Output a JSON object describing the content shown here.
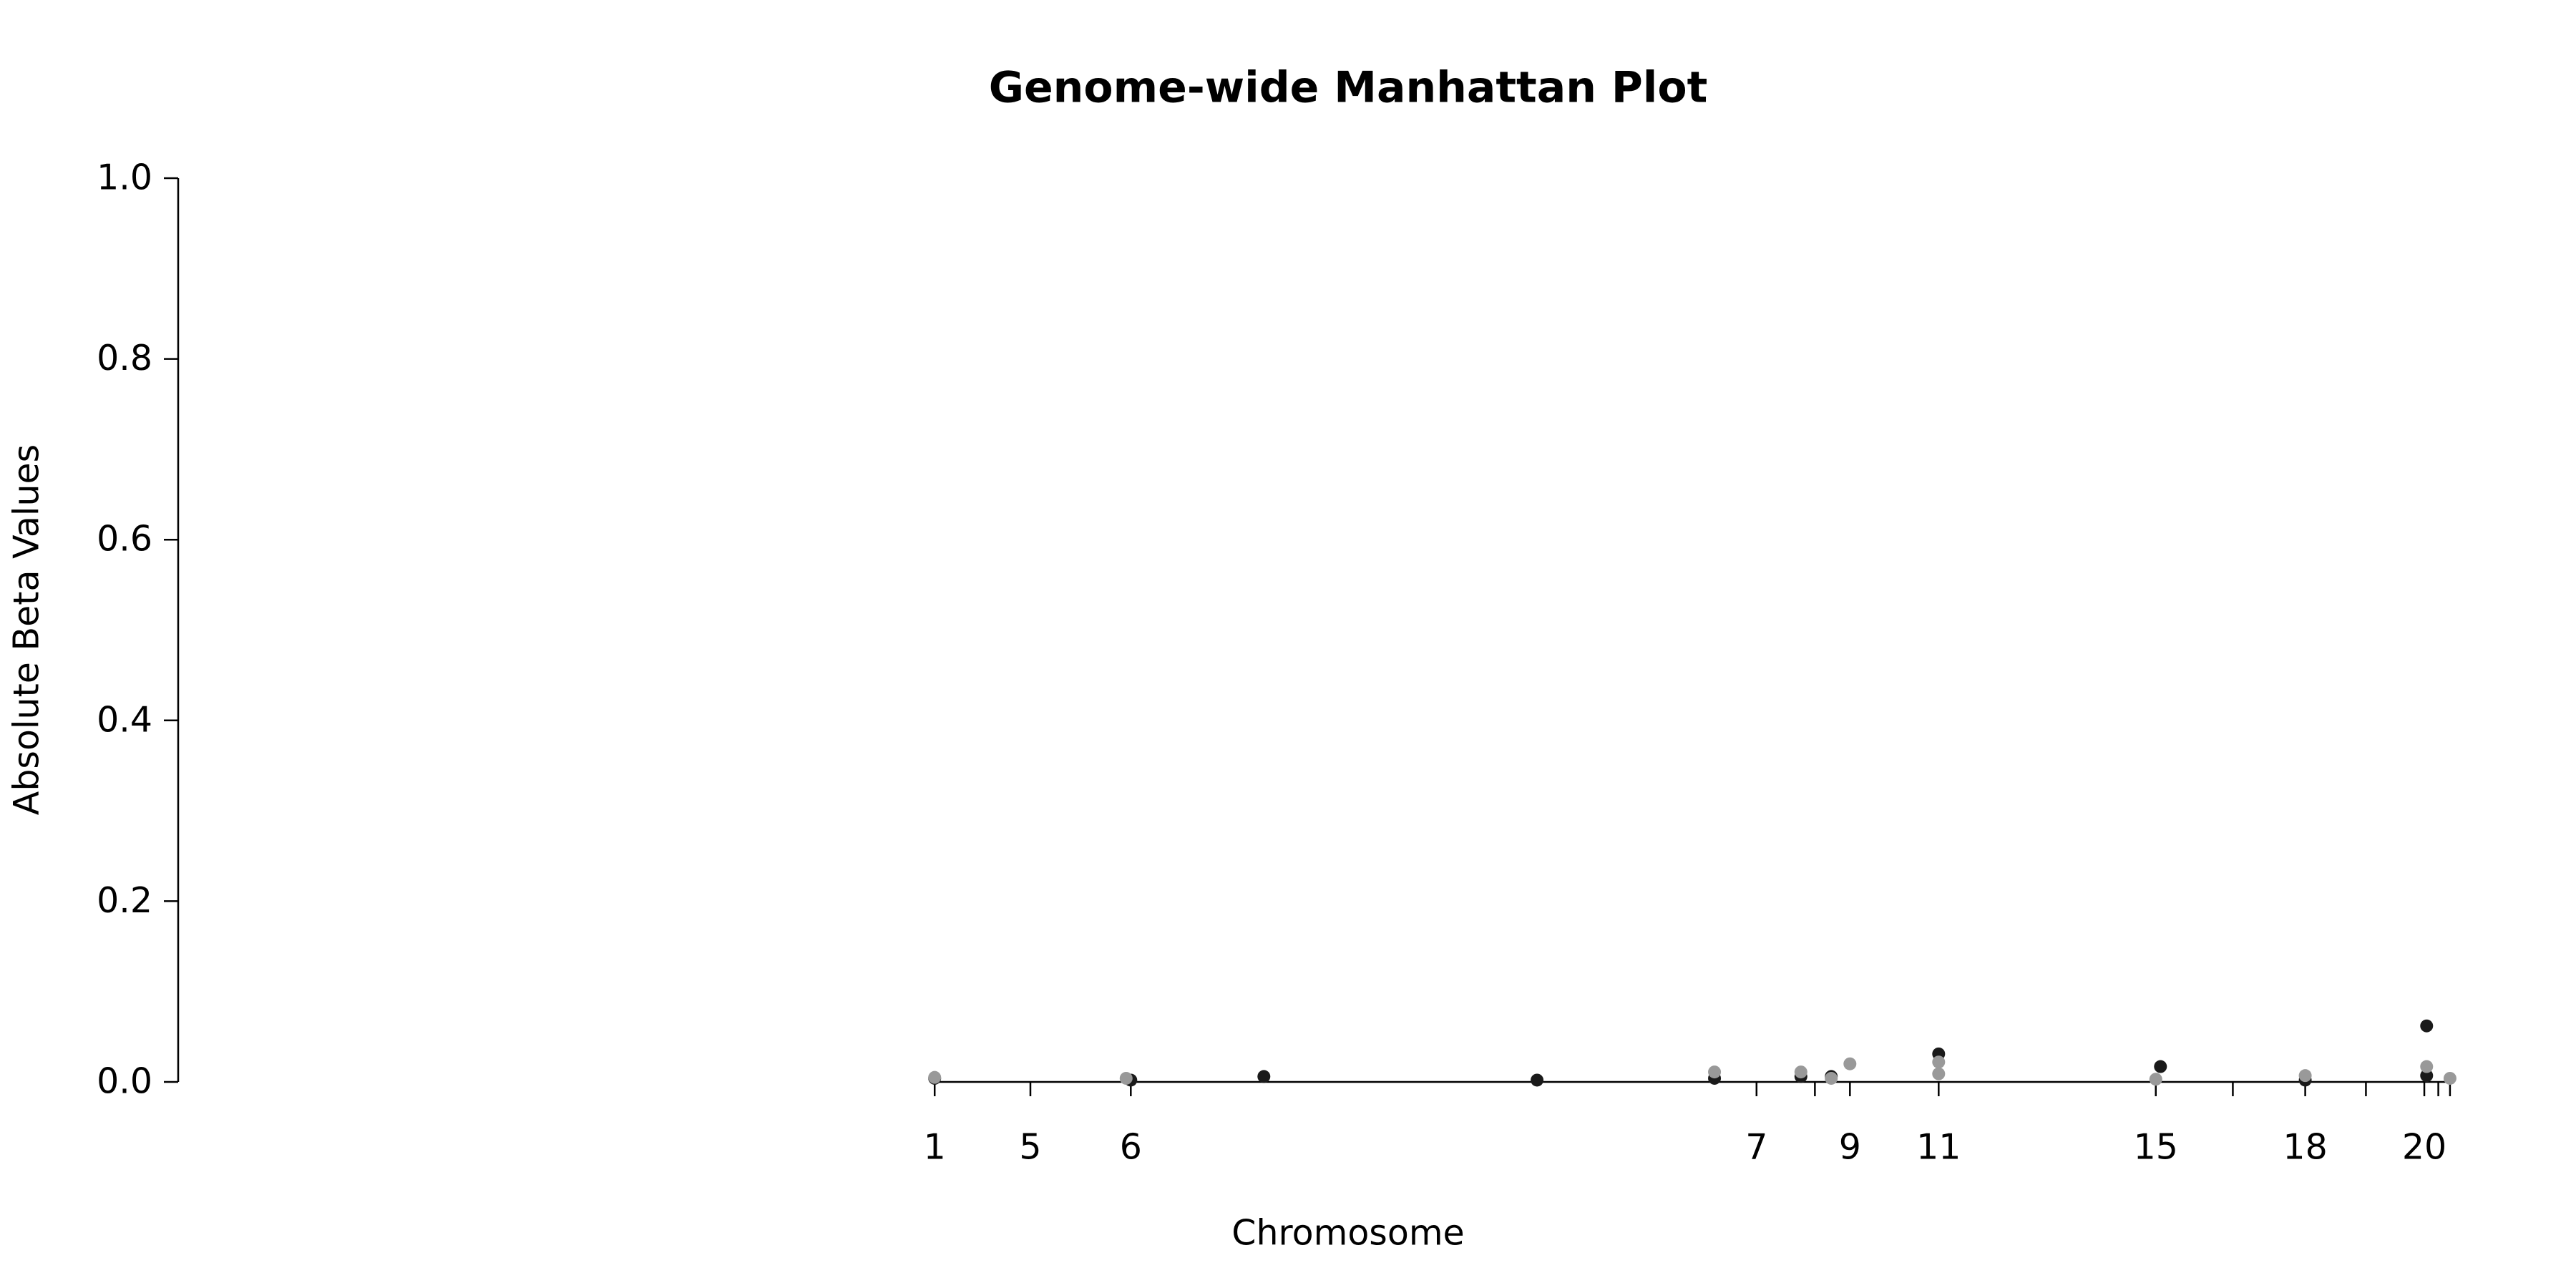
{
  "chart_data": {
    "type": "scatter",
    "title": "Genome-wide Manhattan Plot",
    "x_label": "Chromosome",
    "y_label": "Absolute Beta Values",
    "xlim": [
      0,
      1000
    ],
    "ylim": [
      0,
      1
    ],
    "yticks": [
      {
        "value": 0,
        "label": "0.0"
      },
      {
        "value": 0.2,
        "label": "0.2"
      },
      {
        "value": 0.4,
        "label": "0.4"
      },
      {
        "value": 0.6,
        "label": "0.6"
      },
      {
        "value": 0.8,
        "label": "0.8"
      },
      {
        "value": 1,
        "label": "1.0"
      }
    ],
    "xticks": [
      {
        "value": 324,
        "label": "1"
      },
      {
        "value": 365,
        "label": "5"
      },
      {
        "value": 408,
        "label": "6"
      },
      {
        "value": 676,
        "label": "7"
      },
      {
        "value": 701,
        "label": null
      },
      {
        "value": 716,
        "label": "9"
      },
      {
        "value": 754,
        "label": "11"
      },
      {
        "value": 847,
        "label": "15"
      },
      {
        "value": 880,
        "label": null
      },
      {
        "value": 911,
        "label": "18"
      },
      {
        "value": 937,
        "label": null
      },
      {
        "value": 962,
        "label": "20"
      },
      {
        "value": 968,
        "label": null
      },
      {
        "value": 973,
        "label": null
      }
    ],
    "series": [
      {
        "color": "#1a1a1a",
        "x": [
          324,
          408,
          465,
          582,
          658,
          695,
          708,
          754,
          849,
          911,
          963,
          963
        ],
        "values": [
          0.004,
          0.002,
          0.006,
          0.002,
          0.004,
          0.006,
          0.006,
          0.031,
          0.017,
          0.002,
          0.062,
          0.007
        ]
      },
      {
        "color": "#999999",
        "x": [
          324,
          406,
          658,
          695,
          708,
          716,
          754,
          754,
          847,
          911,
          963,
          973
        ],
        "values": [
          0.005,
          0.004,
          0.011,
          0.011,
          0.004,
          0.02,
          0.022,
          0.009,
          0.003,
          0.007,
          0.017,
          0.004
        ]
      }
    ]
  }
}
